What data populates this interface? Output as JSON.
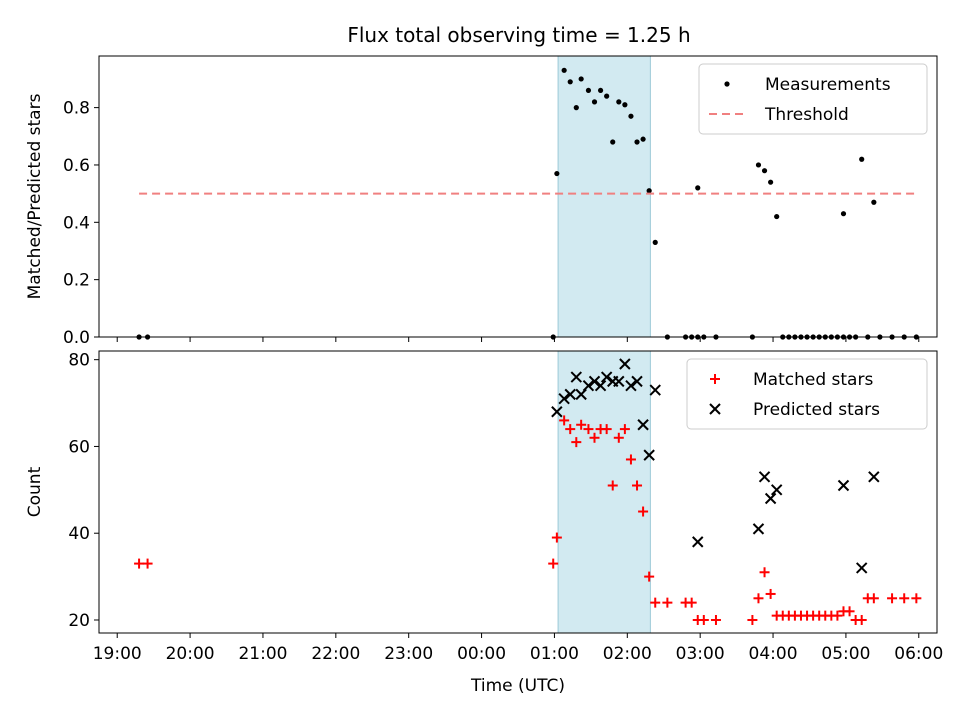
{
  "figure": {
    "title": "Flux total observing time = 1.25 h"
  },
  "chart_data": [
    {
      "type": "scatter",
      "ylabel": "Matched/Predicted stars",
      "xlabel": "",
      "xlim": [
        "19:00",
        "06:00"
      ],
      "ylim": [
        0,
        0.98
      ],
      "yticks": [
        0.0,
        0.2,
        0.4,
        0.6,
        0.8
      ],
      "ytick_labels": [
        "0.0",
        "0.2",
        "0.4",
        "0.6",
        "0.8"
      ],
      "shaded_interval": [
        "01:03",
        "02:19"
      ],
      "legend_position": "upper right",
      "series": [
        {
          "name": "Measurements",
          "color": "#000000",
          "marker": "dot",
          "points": [
            [
              "19:18",
              0
            ],
            [
              "19:25",
              0
            ],
            [
              "00:59",
              0
            ],
            [
              "01:02",
              0.57
            ],
            [
              "01:08",
              0.93
            ],
            [
              "01:13",
              0.89
            ],
            [
              "01:18",
              0.8
            ],
            [
              "01:22",
              0.9
            ],
            [
              "01:28",
              0.86
            ],
            [
              "01:33",
              0.82
            ],
            [
              "01:38",
              0.86
            ],
            [
              "01:43",
              0.84
            ],
            [
              "01:48",
              0.68
            ],
            [
              "01:53",
              0.82
            ],
            [
              "01:58",
              0.81
            ],
            [
              "02:03",
              0.77
            ],
            [
              "02:08",
              0.68
            ],
            [
              "02:13",
              0.69
            ],
            [
              "02:18",
              0.51
            ],
            [
              "02:23",
              0.33
            ],
            [
              "02:33",
              0
            ],
            [
              "02:48",
              0
            ],
            [
              "02:53",
              0
            ],
            [
              "02:58",
              0
            ],
            [
              "03:03",
              0
            ],
            [
              "03:13",
              0
            ],
            [
              "02:58",
              0.52
            ],
            [
              "03:43",
              0
            ],
            [
              "03:48",
              0.6
            ],
            [
              "03:53",
              0.58
            ],
            [
              "03:58",
              0.54
            ],
            [
              "04:03",
              0.42
            ],
            [
              "04:08",
              0
            ],
            [
              "04:13",
              0
            ],
            [
              "04:18",
              0
            ],
            [
              "04:23",
              0
            ],
            [
              "04:28",
              0
            ],
            [
              "04:33",
              0
            ],
            [
              "04:38",
              0
            ],
            [
              "04:43",
              0
            ],
            [
              "04:48",
              0
            ],
            [
              "04:53",
              0
            ],
            [
              "04:58",
              0
            ],
            [
              "04:58",
              0.43
            ],
            [
              "05:03",
              0
            ],
            [
              "05:08",
              0
            ],
            [
              "05:13",
              0.62
            ],
            [
              "05:18",
              0
            ],
            [
              "05:23",
              0.47
            ],
            [
              "05:28",
              0
            ],
            [
              "05:38",
              0
            ],
            [
              "05:48",
              0
            ],
            [
              "05:58",
              0
            ]
          ]
        },
        {
          "name": "Threshold",
          "color": "#f08080",
          "style": "dashed",
          "points": [
            [
              "19:18",
              0.5
            ],
            [
              "05:58",
              0.5
            ]
          ]
        }
      ]
    },
    {
      "type": "scatter",
      "ylabel": "Count",
      "xlabel": "Time (UTC)",
      "xlim": [
        "19:00",
        "06:00"
      ],
      "ylim": [
        17,
        82
      ],
      "yticks": [
        20,
        40,
        60,
        80
      ],
      "ytick_labels": [
        "20",
        "40",
        "60",
        "80"
      ],
      "xticks": [
        "19:00",
        "20:00",
        "21:00",
        "22:00",
        "23:00",
        "00:00",
        "01:00",
        "02:00",
        "03:00",
        "04:00",
        "05:00",
        "06:00"
      ],
      "shaded_interval": [
        "01:03",
        "02:19"
      ],
      "legend_position": "upper right",
      "series": [
        {
          "name": "Matched stars",
          "color": "#ff0000",
          "marker": "plus",
          "points": [
            [
              "19:18",
              33
            ],
            [
              "19:25",
              33
            ],
            [
              "00:59",
              33
            ],
            [
              "01:02",
              39
            ],
            [
              "01:08",
              66
            ],
            [
              "01:13",
              64
            ],
            [
              "01:18",
              61
            ],
            [
              "01:22",
              65
            ],
            [
              "01:28",
              64
            ],
            [
              "01:33",
              62
            ],
            [
              "01:38",
              64
            ],
            [
              "01:43",
              64
            ],
            [
              "01:48",
              51
            ],
            [
              "01:53",
              62
            ],
            [
              "01:58",
              64
            ],
            [
              "02:03",
              57
            ],
            [
              "02:08",
              51
            ],
            [
              "02:13",
              45
            ],
            [
              "02:18",
              30
            ],
            [
              "02:23",
              24
            ],
            [
              "02:33",
              24
            ],
            [
              "02:48",
              24
            ],
            [
              "02:53",
              24
            ],
            [
              "02:58",
              20
            ],
            [
              "03:03",
              20
            ],
            [
              "03:13",
              20
            ],
            [
              "03:43",
              20
            ],
            [
              "03:48",
              25
            ],
            [
              "03:53",
              31
            ],
            [
              "03:58",
              26
            ],
            [
              "04:03",
              21
            ],
            [
              "04:08",
              21
            ],
            [
              "04:13",
              21
            ],
            [
              "04:18",
              21
            ],
            [
              "04:23",
              21
            ],
            [
              "04:28",
              21
            ],
            [
              "04:33",
              21
            ],
            [
              "04:38",
              21
            ],
            [
              "04:43",
              21
            ],
            [
              "04:48",
              21
            ],
            [
              "04:53",
              21
            ],
            [
              "04:58",
              22
            ],
            [
              "05:03",
              22
            ],
            [
              "05:08",
              20
            ],
            [
              "05:13",
              20
            ],
            [
              "05:18",
              25
            ],
            [
              "05:23",
              25
            ],
            [
              "05:38",
              25
            ],
            [
              "05:48",
              25
            ],
            [
              "05:58",
              25
            ]
          ]
        },
        {
          "name": "Predicted stars",
          "color": "#000000",
          "marker": "x",
          "points": [
            [
              "01:02",
              68
            ],
            [
              "01:08",
              71
            ],
            [
              "01:13",
              72
            ],
            [
              "01:18",
              76
            ],
            [
              "01:22",
              72
            ],
            [
              "01:28",
              74
            ],
            [
              "01:33",
              75
            ],
            [
              "01:38",
              74
            ],
            [
              "01:43",
              76
            ],
            [
              "01:48",
              75
            ],
            [
              "01:53",
              75
            ],
            [
              "01:58",
              79
            ],
            [
              "02:03",
              74
            ],
            [
              "02:08",
              75
            ],
            [
              "02:13",
              65
            ],
            [
              "02:18",
              58
            ],
            [
              "02:23",
              73
            ],
            [
              "02:58",
              38
            ],
            [
              "03:48",
              41
            ],
            [
              "03:53",
              53
            ],
            [
              "03:58",
              48
            ],
            [
              "04:03",
              50
            ],
            [
              "04:58",
              51
            ],
            [
              "05:13",
              32
            ],
            [
              "05:23",
              53
            ]
          ]
        }
      ]
    }
  ]
}
